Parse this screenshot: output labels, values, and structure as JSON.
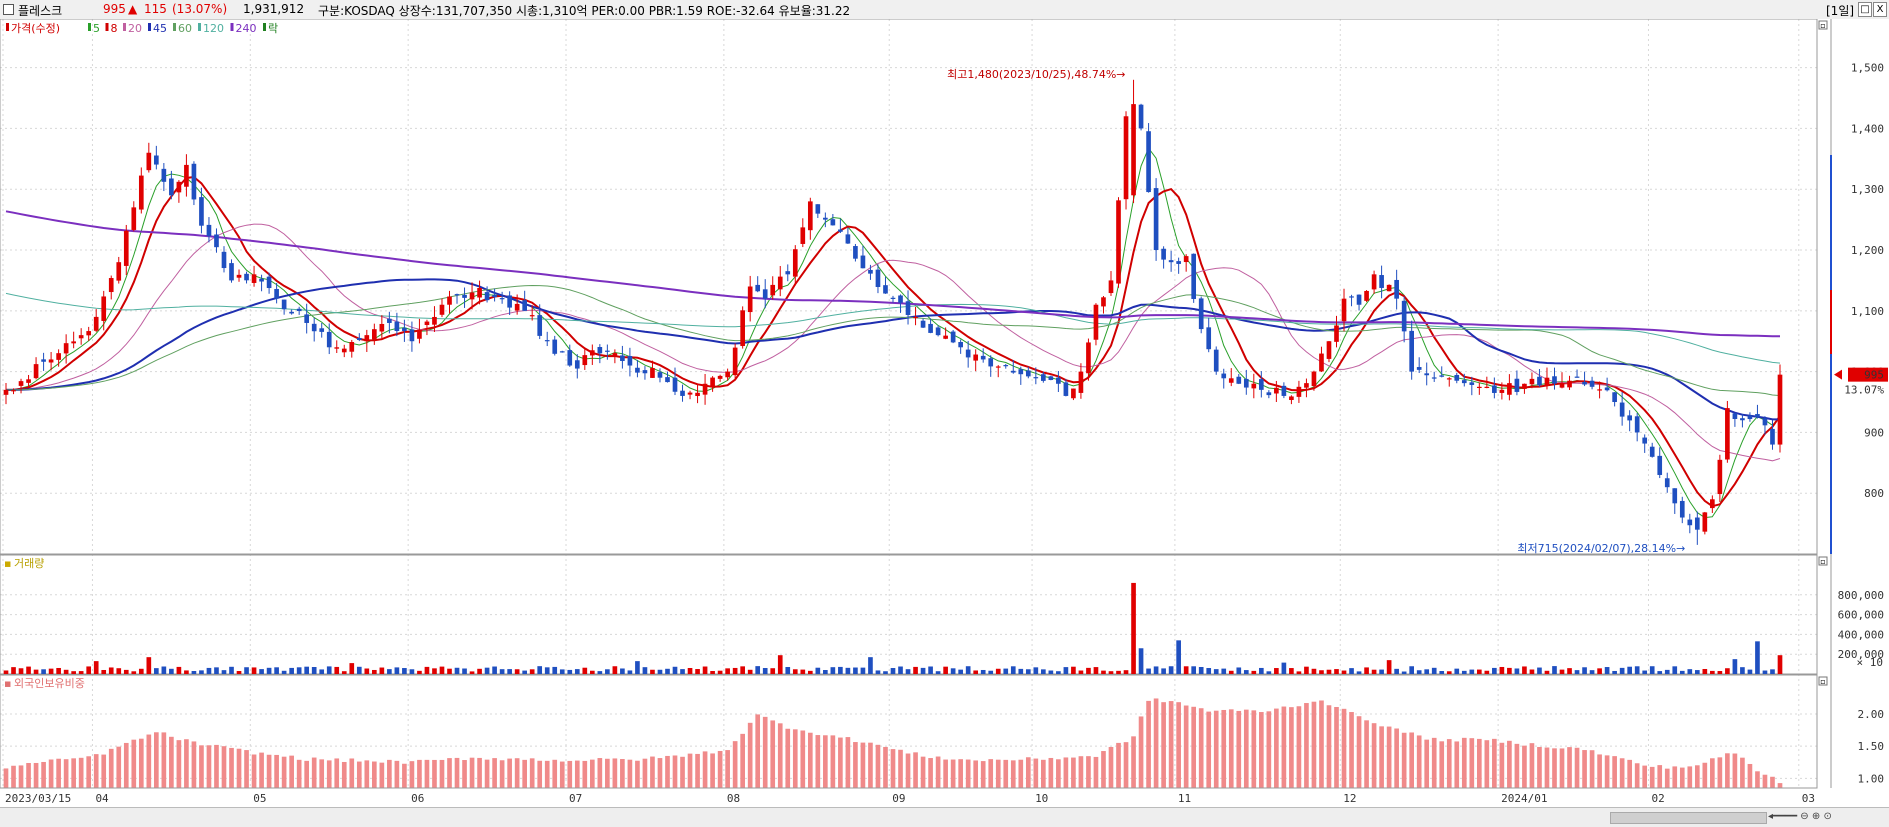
{
  "header": {
    "name": "플레스크",
    "price": "995",
    "change_arrow": "▲",
    "change": "115",
    "change_pct": "(13.07%)",
    "volume": "1,931,912",
    "info": "구분:KOSDAQ  상장수:131,707,350  시총:1,310억  PER:0.00  PBR:1.59  ROE:-32.64  유보율:31.22",
    "period": "[1일]",
    "colors": {
      "up": "#e00000",
      "down": "#1f4fc0",
      "text": "#000000"
    }
  },
  "window_buttons": [
    "□",
    "X"
  ],
  "panel_buttons": {
    "minimize": "▫",
    "close": "x"
  },
  "price_panel": {
    "legend": [
      {
        "label": "가격(수정)",
        "color": "#d00000"
      },
      {
        "label": "5",
        "color": "#2aa02a"
      },
      {
        "label": "8",
        "color": "#d00000"
      },
      {
        "label": "20",
        "color": "#c060a0"
      },
      {
        "label": "45",
        "color": "#1f2fb0"
      },
      {
        "label": "60",
        "color": "#60a060"
      },
      {
        "label": "120",
        "color": "#50b0a0"
      },
      {
        "label": "240",
        "color": "#7b2fbf"
      },
      {
        "label": "락",
        "color": "#208020"
      }
    ],
    "high_annotation": "최고1,480(2023/10/25),48.74%→",
    "low_annotation": "최저715(2024/02/07),28.14%→",
    "current_price_label": "995",
    "current_pct_label": "13.07%",
    "y_ticks": [
      "1,500",
      "1,400",
      "1,300",
      "1,200",
      "1,100",
      "1,000",
      "900",
      "800"
    ]
  },
  "volume_panel": {
    "label": "거래량",
    "y_ticks": [
      "800,000",
      "600,000",
      "400,000",
      "200,000"
    ],
    "unit": "× 10"
  },
  "foreign_panel": {
    "label": "외국인보유비중",
    "y_ticks": [
      "2.00",
      "1.50",
      "1.00"
    ]
  },
  "x_axis": {
    "labels": [
      "2023/03/15",
      "04",
      "05",
      "06",
      "07",
      "08",
      "09",
      "10",
      "11",
      "12",
      "2024/01",
      "02",
      "03"
    ]
  },
  "chart_data": {
    "type": "candlestick",
    "price_ylim": [
      700,
      1580
    ],
    "volume_ylim": [
      0,
      1000000
    ],
    "foreign_ylim": [
      0.85,
      2.45
    ],
    "months": [
      "2023/03/15",
      "04",
      "05",
      "06",
      "07",
      "08",
      "09",
      "10",
      "11",
      "12",
      "2024/01",
      "02",
      "03"
    ],
    "month_start_index": [
      0,
      12,
      33,
      54,
      75,
      96,
      118,
      137,
      156,
      178,
      199,
      219,
      239
    ],
    "close_anchors": [
      [
        0,
        970
      ],
      [
        6,
        1020
      ],
      [
        10,
        1060
      ],
      [
        12,
        1090
      ],
      [
        15,
        1180
      ],
      [
        19,
        1360
      ],
      [
        22,
        1290
      ],
      [
        24,
        1340
      ],
      [
        26,
        1240
      ],
      [
        30,
        1150
      ],
      [
        33,
        1160
      ],
      [
        36,
        1120
      ],
      [
        40,
        1080
      ],
      [
        44,
        1040
      ],
      [
        48,
        1060
      ],
      [
        51,
        1080
      ],
      [
        54,
        1050
      ],
      [
        58,
        1110
      ],
      [
        62,
        1130
      ],
      [
        66,
        1120
      ],
      [
        69,
        1100
      ],
      [
        72,
        1050
      ],
      [
        75,
        1010
      ],
      [
        79,
        1030
      ],
      [
        83,
        1010
      ],
      [
        87,
        990
      ],
      [
        90,
        960
      ],
      [
        93,
        980
      ],
      [
        96,
        1000
      ],
      [
        99,
        1140
      ],
      [
        101,
        1120
      ],
      [
        104,
        1160
      ],
      [
        107,
        1280
      ],
      [
        109,
        1250
      ],
      [
        111,
        1230
      ],
      [
        114,
        1170
      ],
      [
        118,
        1120
      ],
      [
        121,
        1090
      ],
      [
        124,
        1060
      ],
      [
        127,
        1040
      ],
      [
        130,
        1020
      ],
      [
        133,
        1010
      ],
      [
        137,
        990
      ],
      [
        140,
        980
      ],
      [
        141,
        960
      ],
      [
        143,
        1000
      ],
      [
        145,
        1110
      ],
      [
        147,
        1150
      ],
      [
        149,
        1420
      ],
      [
        150,
        1440
      ],
      [
        151,
        1400
      ],
      [
        153,
        1200
      ],
      [
        155,
        1180
      ],
      [
        157,
        1190
      ],
      [
        159,
        1070
      ],
      [
        161,
        1000
      ],
      [
        164,
        980
      ],
      [
        167,
        970
      ],
      [
        170,
        960
      ],
      [
        172,
        975
      ],
      [
        174,
        1000
      ],
      [
        176,
        1050
      ],
      [
        178,
        1120
      ],
      [
        180,
        1110
      ],
      [
        182,
        1160
      ],
      [
        185,
        1120
      ],
      [
        187,
        1000
      ],
      [
        190,
        990
      ],
      [
        193,
        985
      ],
      [
        196,
        975
      ],
      [
        199,
        970
      ],
      [
        202,
        980
      ],
      [
        205,
        990
      ],
      [
        208,
        985
      ],
      [
        211,
        975
      ],
      [
        214,
        950
      ],
      [
        217,
        900
      ],
      [
        220,
        830
      ],
      [
        223,
        760
      ],
      [
        225,
        740
      ],
      [
        227,
        790
      ],
      [
        229,
        940
      ],
      [
        231,
        920
      ],
      [
        233,
        925
      ],
      [
        235,
        880
      ],
      [
        236,
        995
      ]
    ],
    "volume_spikes": [
      [
        12,
        130
      ],
      [
        19,
        170
      ],
      [
        46,
        110
      ],
      [
        84,
        130
      ],
      [
        103,
        190
      ],
      [
        115,
        170
      ],
      [
        150,
        920
      ],
      [
        151,
        260
      ],
      [
        156,
        340
      ],
      [
        170,
        115
      ],
      [
        184,
        140
      ],
      [
        230,
        150
      ],
      [
        233,
        330
      ],
      [
        236,
        190
      ]
    ],
    "foreign_anchors": [
      [
        0,
        1.18
      ],
      [
        12,
        1.35
      ],
      [
        20,
        1.72
      ],
      [
        25,
        1.55
      ],
      [
        33,
        1.4
      ],
      [
        40,
        1.3
      ],
      [
        54,
        1.25
      ],
      [
        62,
        1.32
      ],
      [
        75,
        1.28
      ],
      [
        85,
        1.3
      ],
      [
        92,
        1.38
      ],
      [
        96,
        1.45
      ],
      [
        100,
        1.98
      ],
      [
        104,
        1.8
      ],
      [
        108,
        1.7
      ],
      [
        115,
        1.55
      ],
      [
        118,
        1.45
      ],
      [
        122,
        1.35
      ],
      [
        128,
        1.28
      ],
      [
        137,
        1.3
      ],
      [
        145,
        1.35
      ],
      [
        150,
        1.65
      ],
      [
        152,
        2.22
      ],
      [
        155,
        2.2
      ],
      [
        160,
        2.05
      ],
      [
        168,
        2.05
      ],
      [
        175,
        2.22
      ],
      [
        178,
        2.05
      ],
      [
        185,
        1.75
      ],
      [
        190,
        1.6
      ],
      [
        197,
        1.6
      ],
      [
        205,
        1.5
      ],
      [
        210,
        1.45
      ],
      [
        215,
        1.3
      ],
      [
        219,
        1.18
      ],
      [
        224,
        1.18
      ],
      [
        230,
        1.4
      ],
      [
        233,
        1.12
      ],
      [
        236,
        0.95
      ],
      [
        239,
        0.92
      ]
    ],
    "moving_averages": [
      {
        "name": "5",
        "period": 5,
        "color": "#2aa02a",
        "width": 1
      },
      {
        "name": "8",
        "period": 8,
        "color": "#d00000",
        "width": 2
      },
      {
        "name": "20",
        "period": 20,
        "color": "#c060a0",
        "width": 1
      },
      {
        "name": "45",
        "period": 45,
        "color": "#1f2fb0",
        "width": 2
      },
      {
        "name": "60",
        "period": 60,
        "color": "#60a060",
        "width": 1
      },
      {
        "name": "120",
        "period": 120,
        "color": "#50b0a0",
        "width": 1
      },
      {
        "name": "240",
        "period": 240,
        "color": "#7b2fbf",
        "width": 2
      }
    ],
    "ma_prehistory_start": {
      "120": 1290,
      "240": 1560
    },
    "high": {
      "index": 150,
      "value": 1480,
      "date": "2023/10/25",
      "pct": 48.74
    },
    "low": {
      "index": 225,
      "value": 715,
      "date": "2024/02/07",
      "pct": 28.14
    },
    "last": {
      "value": 995,
      "pct": 13.07
    }
  }
}
